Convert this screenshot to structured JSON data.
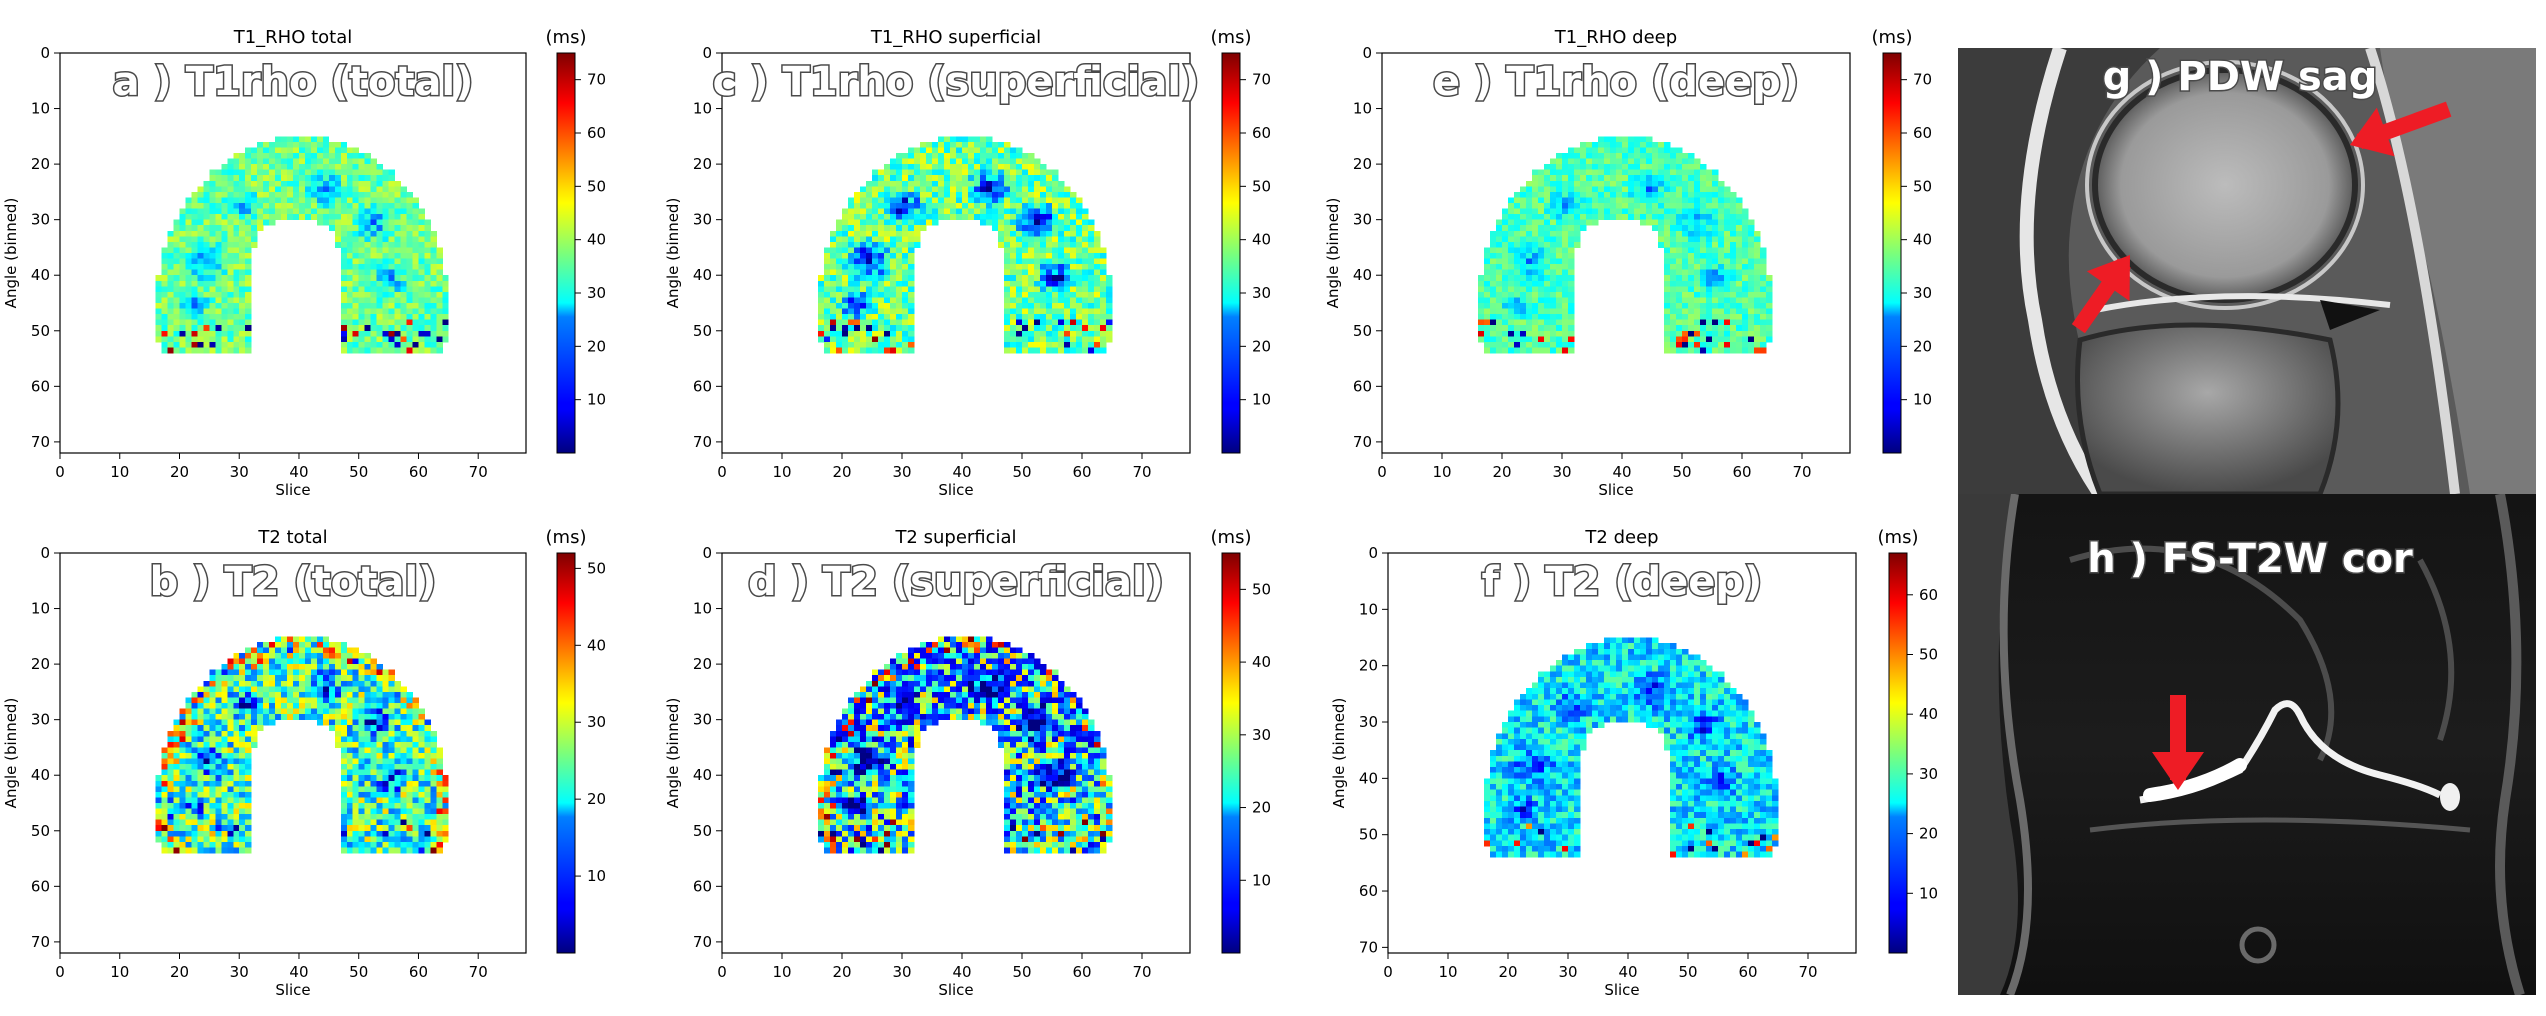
{
  "figure": {
    "background": "#ffffff"
  },
  "chart_data": [
    {
      "type": "heatmap",
      "title": "T1_RHO total",
      "overlay": "a ) T1rho (total)",
      "xlabel": "Slice",
      "ylabel": "Angle (binned)",
      "xticks": [
        0,
        10,
        20,
        30,
        40,
        50,
        60,
        70
      ],
      "yticks": [
        0,
        10,
        20,
        30,
        40,
        50,
        60,
        70
      ],
      "xlim": [
        0,
        78
      ],
      "ylim": [
        72,
        0
      ],
      "colorbar": {
        "label": "(ms)",
        "min": 0,
        "max": 75,
        "ticks": [
          10,
          20,
          30,
          40,
          50,
          60,
          70
        ],
        "colormap": "jet"
      }
    },
    {
      "type": "heatmap",
      "title": "T2 total",
      "overlay": "b ) T2 (total)",
      "xlabel": "Slice",
      "ylabel": "Angle (binned)",
      "xticks": [
        0,
        10,
        20,
        30,
        40,
        50,
        60,
        70
      ],
      "yticks": [
        0,
        10,
        20,
        30,
        40,
        50,
        60,
        70
      ],
      "xlim": [
        0,
        78
      ],
      "ylim": [
        72,
        0
      ],
      "colorbar": {
        "label": "(ms)",
        "min": 0,
        "max": 52,
        "ticks": [
          10,
          20,
          30,
          40,
          50
        ],
        "colormap": "jet"
      }
    },
    {
      "type": "heatmap",
      "title": "T1_RHO superficial",
      "overlay": "c ) T1rho (superficial)",
      "xlabel": "Slice",
      "ylabel": "Angle (binned)",
      "xticks": [
        0,
        10,
        20,
        30,
        40,
        50,
        60,
        70
      ],
      "yticks": [
        0,
        10,
        20,
        30,
        40,
        50,
        60,
        70
      ],
      "xlim": [
        0,
        78
      ],
      "ylim": [
        72,
        0
      ],
      "colorbar": {
        "label": "(ms)",
        "min": 0,
        "max": 75,
        "ticks": [
          10,
          20,
          30,
          40,
          50,
          60,
          70
        ],
        "colormap": "jet"
      }
    },
    {
      "type": "heatmap",
      "title": "T2 superficial",
      "overlay": "d ) T2 (superficial)",
      "xlabel": "Slice",
      "ylabel": "Angle (binned)",
      "xticks": [
        0,
        10,
        20,
        30,
        40,
        50,
        60,
        70
      ],
      "yticks": [
        0,
        10,
        20,
        30,
        40,
        50,
        60,
        70
      ],
      "xlim": [
        0,
        78
      ],
      "ylim": [
        72,
        0
      ],
      "colorbar": {
        "label": "(ms)",
        "min": 0,
        "max": 55,
        "ticks": [
          10,
          20,
          30,
          40,
          50
        ],
        "colormap": "jet"
      }
    },
    {
      "type": "heatmap",
      "title": "T1_RHO deep",
      "overlay": "e ) T1rho (deep)",
      "xlabel": "Slice",
      "ylabel": "Angle (binned)",
      "xticks": [
        0,
        10,
        20,
        30,
        40,
        50,
        60,
        70
      ],
      "yticks": [
        0,
        10,
        20,
        30,
        40,
        50,
        60,
        70
      ],
      "xlim": [
        0,
        78
      ],
      "ylim": [
        72,
        0
      ],
      "colorbar": {
        "label": "(ms)",
        "min": 0,
        "max": 75,
        "ticks": [
          10,
          20,
          30,
          40,
          50,
          60,
          70
        ],
        "colormap": "jet"
      }
    },
    {
      "type": "heatmap",
      "title": "T2 deep",
      "overlay": "f ) T2 (deep)",
      "xlabel": "Slice",
      "ylabel": "Angle (binned)",
      "xticks": [
        0,
        10,
        20,
        30,
        40,
        50,
        60,
        70
      ],
      "yticks": [
        0,
        10,
        20,
        30,
        40,
        50,
        60,
        70
      ],
      "xlim": [
        0,
        78
      ],
      "ylim": [
        71,
        0
      ],
      "colorbar": {
        "label": "(ms)",
        "min": 0,
        "max": 67,
        "ticks": [
          10,
          20,
          30,
          40,
          50,
          60
        ],
        "colormap": "jet"
      }
    }
  ],
  "images": [
    {
      "label": "g ) PDW sag",
      "arrow_color": "#ee1c25"
    },
    {
      "label": "h ) FS-T2W cor",
      "arrow_color": "#ee1c25"
    }
  ]
}
